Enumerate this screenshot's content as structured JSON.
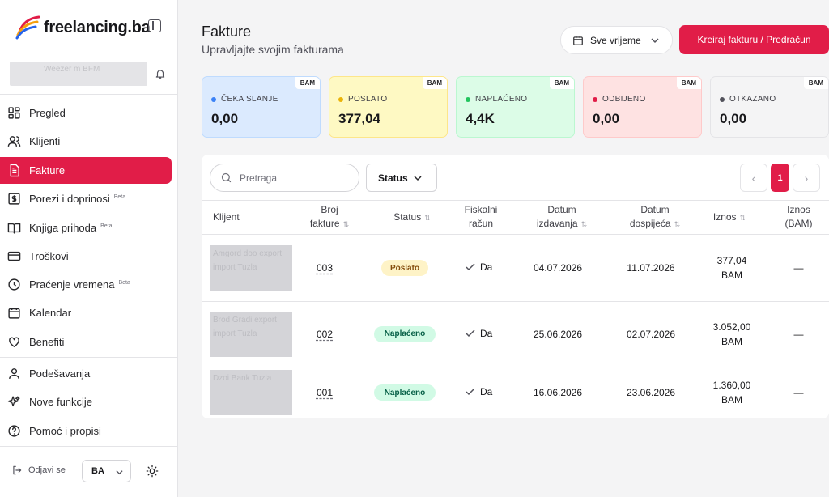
{
  "sidebar": {
    "brand": "freelancing.ba",
    "account_name": "Weezer m BFM",
    "nav": [
      {
        "label": "Pregled",
        "icon": "dashboard-icon",
        "beta": ""
      },
      {
        "label": "Klijenti",
        "icon": "users-icon",
        "beta": ""
      },
      {
        "label": "Fakture",
        "icon": "document-icon",
        "beta": "",
        "active": true
      },
      {
        "label": "Porezi i doprinosi",
        "icon": "dollar-icon",
        "beta": "Beta"
      },
      {
        "label": "Knjiga prihoda",
        "icon": "book-icon",
        "beta": "Beta"
      },
      {
        "label": "Troškovi",
        "icon": "card-icon",
        "beta": ""
      },
      {
        "label": "Praćenje vremena",
        "icon": "clock-icon",
        "beta": "Beta"
      },
      {
        "label": "Kalendar",
        "icon": "calendar-icon",
        "beta": ""
      },
      {
        "label": "Benefiti",
        "icon": "heart-icon",
        "beta": ""
      },
      {
        "label": "Podešavanja",
        "icon": "user-icon",
        "beta": ""
      },
      {
        "label": "Nove funkcije",
        "icon": "sparkles-icon",
        "beta": ""
      },
      {
        "label": "Pomoć i propisi",
        "icon": "help-icon",
        "beta": ""
      }
    ],
    "logout_label": "Odjavi se",
    "language": "BA"
  },
  "header": {
    "title": "Fakture",
    "subtitle": "Upravljajte svojim fakturama",
    "date_filter": "Sve vrijeme",
    "create_button": "Kreiraj fakturu / Predračun"
  },
  "summary": [
    {
      "label": "ČEKA SLANJE",
      "value": "0,00",
      "currency": "BAM",
      "color": "#3b82f6",
      "bg": "#dbeafe",
      "border": "#bfdbfe"
    },
    {
      "label": "POSLATO",
      "value": "377,04",
      "currency": "BAM",
      "color": "#eab308",
      "bg": "#fef9c3",
      "border": "#fde68a"
    },
    {
      "label": "NAPLAĆENO",
      "value": "4,4K",
      "currency": "BAM",
      "color": "#22c55e",
      "bg": "#dcfce7",
      "border": "#bbf7d0"
    },
    {
      "label": "ODBIJENO",
      "value": "0,00",
      "currency": "BAM",
      "color": "#e11d48",
      "bg": "#fee2e2",
      "border": "#fecaca"
    },
    {
      "label": "OTKAZANO",
      "value": "0,00",
      "currency": "BAM",
      "color": "#52525b",
      "bg": "#f4f4f5",
      "border": "#e4e4e7"
    }
  ],
  "toolbar": {
    "search_placeholder": "Pretraga",
    "status_label": "Status",
    "page_current": "1",
    "prev_symbol": "‹",
    "next_symbol": "›"
  },
  "table": {
    "columns": {
      "client": "Klijent",
      "number_l1": "Broj",
      "number_l2": "fakture",
      "status": "Status",
      "fiscal_l1": "Fiskalni",
      "fiscal_l2": "račun",
      "issued_l1": "Datum",
      "issued_l2": "izdavanja",
      "due_l1": "Datum",
      "due_l2": "dospijeća",
      "amount": "Iznos",
      "amount_bam_l1": "Iznos",
      "amount_bam_l2": "(BAM)"
    },
    "rows": [
      {
        "client": "Amgord doo export import Tuzla",
        "number": "003",
        "status": "Poslato",
        "status_type": "sent",
        "fiscal": "Da",
        "issued": "04.07.2026",
        "due": "11.07.2026",
        "amount_value": "377,04",
        "amount_currency": "BAM",
        "amount_bam": "—"
      },
      {
        "client": "Brod Gradi export import Tuzla",
        "number": "002",
        "status": "Naplaćeno",
        "status_type": "paid",
        "fiscal": "Da",
        "issued": "25.06.2026",
        "due": "02.07.2026",
        "amount_value": "3.052,00",
        "amount_currency": "BAM",
        "amount_bam": "—"
      },
      {
        "client": "Dzoi Bank Tuzla",
        "number": "001",
        "status": "Naplaćeno",
        "status_type": "paid",
        "fiscal": "Da",
        "issued": "16.06.2026",
        "due": "23.06.2026",
        "amount_value": "1.360,00",
        "amount_currency": "BAM",
        "amount_bam": "—"
      }
    ]
  }
}
